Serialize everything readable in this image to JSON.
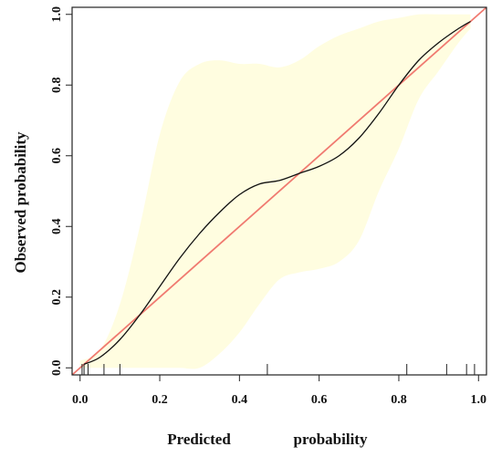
{
  "chart_data": {
    "type": "line",
    "title": "",
    "xlabel_parts": [
      "Predicted",
      "probability"
    ],
    "ylabel": "Observed probability",
    "xlim": [
      -0.02,
      1.02
    ],
    "ylim": [
      -0.02,
      1.02
    ],
    "x_ticks": [
      0.0,
      0.2,
      0.4,
      0.6,
      0.8,
      1.0
    ],
    "x_tick_labels": [
      "0.0",
      "0.2",
      "0.4",
      "0.6",
      "0.8",
      "1.0"
    ],
    "y_ticks": [
      0.0,
      0.2,
      0.4,
      0.6,
      0.8,
      1.0
    ],
    "y_tick_labels": [
      "0.0",
      "0.2",
      "0.4",
      "0.6",
      "0.8",
      "1.0"
    ],
    "grid": false,
    "legend": "none",
    "colors": {
      "reference": "#f07a70",
      "calibration": "#111111",
      "band": "#fffde0",
      "axes": "#222222"
    },
    "reference_line": {
      "x": [
        -0.02,
        1.02
      ],
      "y": [
        -0.02,
        1.02
      ]
    },
    "calibration_curve": {
      "x": [
        0.01,
        0.05,
        0.1,
        0.15,
        0.2,
        0.25,
        0.3,
        0.35,
        0.4,
        0.45,
        0.5,
        0.55,
        0.6,
        0.65,
        0.7,
        0.75,
        0.8,
        0.85,
        0.9,
        0.95,
        0.98
      ],
      "y": [
        0.01,
        0.03,
        0.08,
        0.15,
        0.23,
        0.31,
        0.38,
        0.44,
        0.49,
        0.52,
        0.53,
        0.55,
        0.57,
        0.6,
        0.65,
        0.72,
        0.8,
        0.87,
        0.92,
        0.96,
        0.98
      ]
    },
    "confidence_band": {
      "x": [
        0.0,
        0.05,
        0.1,
        0.15,
        0.2,
        0.25,
        0.3,
        0.35,
        0.4,
        0.45,
        0.5,
        0.55,
        0.6,
        0.65,
        0.7,
        0.75,
        0.8,
        0.85,
        0.9,
        0.95,
        0.98
      ],
      "upper": [
        0.02,
        0.05,
        0.18,
        0.4,
        0.66,
        0.81,
        0.86,
        0.87,
        0.86,
        0.86,
        0.85,
        0.87,
        0.91,
        0.94,
        0.96,
        0.98,
        0.99,
        1.0,
        1.0,
        1.0,
        1.0
      ],
      "lower": [
        0.0,
        0.0,
        0.0,
        0.0,
        0.0,
        0.0,
        0.0,
        0.04,
        0.1,
        0.18,
        0.25,
        0.27,
        0.28,
        0.3,
        0.36,
        0.5,
        0.62,
        0.76,
        0.84,
        0.92,
        0.96
      ]
    },
    "rug": [
      0.005,
      0.01,
      0.02,
      0.06,
      0.1,
      0.47,
      0.82,
      0.92,
      0.97,
      0.99
    ]
  }
}
